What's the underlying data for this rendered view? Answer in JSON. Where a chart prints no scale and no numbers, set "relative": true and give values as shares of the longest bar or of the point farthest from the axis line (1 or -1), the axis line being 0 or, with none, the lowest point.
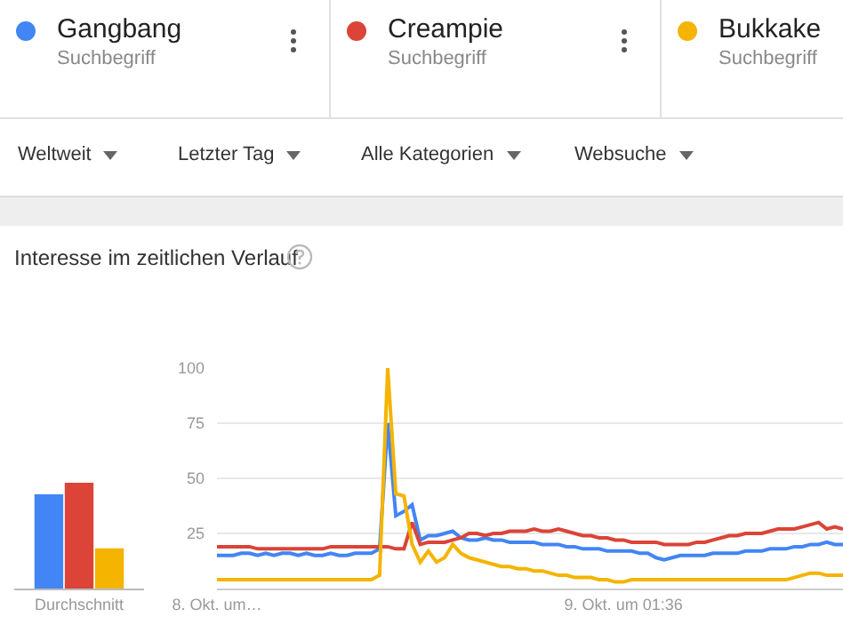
{
  "chart_data": [
    {
      "type": "line",
      "title": "Interesse im zeitlichen Verlauf",
      "legend": "top",
      "legend_title": "Suchbegriff",
      "annotations": [
        "Weltweit",
        "Letzter Tag",
        "Alle Kategorien",
        "Websuche"
      ],
      "categories": [
        "8. Okt. um…",
        null,
        null,
        null,
        null,
        null,
        null,
        null,
        null,
        null,
        null,
        null,
        null,
        null,
        null,
        null,
        null,
        null,
        null,
        null,
        null,
        null,
        null,
        null,
        null,
        null,
        null,
        null,
        null,
        null,
        null,
        null,
        null,
        null,
        null,
        null,
        null,
        null,
        null,
        null,
        null,
        null,
        null,
        null,
        null,
        null,
        null,
        null,
        null,
        null,
        "9. Okt. um 01:36",
        null,
        null,
        null,
        null,
        null,
        null,
        null,
        null,
        null,
        null,
        null,
        null,
        null,
        null,
        null,
        null,
        null,
        null,
        null,
        null,
        null,
        null,
        null,
        null,
        null,
        null,
        null
      ],
      "ylim": [
        0,
        100
      ],
      "yticks": [
        25,
        50,
        75,
        100
      ],
      "grid": "y",
      "series": [
        {
          "name": "Gangbang",
          "color": "#4285f4",
          "values": [
            15,
            15,
            15,
            16,
            16,
            15,
            16,
            15,
            16,
            16,
            15,
            16,
            15,
            15,
            16,
            15,
            15,
            16,
            16,
            16,
            18,
            75,
            33,
            35,
            38,
            22,
            24,
            24,
            25,
            26,
            23,
            22,
            22,
            23,
            22,
            22,
            21,
            21,
            21,
            21,
            20,
            20,
            20,
            19,
            19,
            18,
            18,
            18,
            17,
            17,
            17,
            17,
            16,
            16,
            14,
            13,
            14,
            15,
            15,
            15,
            15,
            16,
            16,
            16,
            16,
            17,
            17,
            17,
            18,
            18,
            18,
            19,
            19,
            20,
            20,
            21,
            20,
            20
          ]
        },
        {
          "name": "Creampie",
          "color": "#db4437",
          "values": [
            19,
            19,
            19,
            19,
            19,
            18,
            18,
            18,
            18,
            18,
            18,
            18,
            18,
            18,
            19,
            19,
            19,
            19,
            19,
            19,
            19,
            19,
            18,
            18,
            30,
            20,
            21,
            21,
            21,
            22,
            23,
            25,
            25,
            24,
            25,
            25,
            26,
            26,
            26,
            27,
            26,
            26,
            27,
            26,
            25,
            24,
            24,
            23,
            23,
            22,
            22,
            21,
            21,
            21,
            21,
            20,
            20,
            20,
            20,
            21,
            21,
            22,
            23,
            24,
            24,
            25,
            25,
            25,
            26,
            27,
            27,
            27,
            28,
            29,
            30,
            27,
            28,
            27
          ]
        },
        {
          "name": "Bukkake",
          "color": "#f4b400",
          "values": [
            4,
            4,
            4,
            4,
            4,
            4,
            4,
            4,
            4,
            4,
            4,
            4,
            4,
            4,
            4,
            4,
            4,
            4,
            4,
            4,
            6,
            100,
            43,
            42,
            20,
            12,
            17,
            12,
            14,
            20,
            16,
            14,
            13,
            12,
            11,
            10,
            10,
            9,
            9,
            8,
            8,
            7,
            6,
            6,
            5,
            5,
            5,
            4,
            4,
            3,
            3,
            4,
            4,
            4,
            4,
            4,
            4,
            4,
            4,
            4,
            4,
            4,
            4,
            4,
            4,
            4,
            4,
            4,
            4,
            4,
            4,
            5,
            6,
            7,
            7,
            6,
            6,
            6
          ]
        }
      ]
    },
    {
      "type": "bar",
      "relative": true,
      "categories": [
        "Durchschnitt"
      ],
      "series": [
        {
          "color": "#4285f4",
          "values": [
            0.89
          ]
        },
        {
          "color": "#db4437",
          "values": [
            1
          ]
        },
        {
          "color": "#f4b400",
          "values": [
            0.38
          ]
        }
      ]
    }
  ]
}
